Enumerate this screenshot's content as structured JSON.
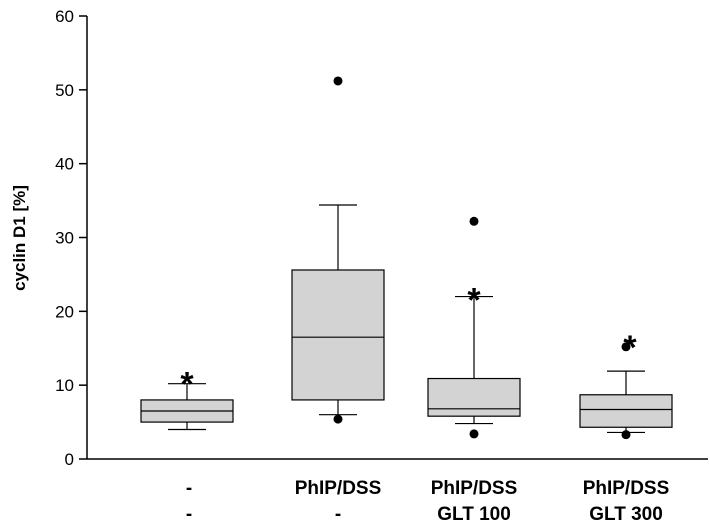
{
  "chart_data": {
    "type": "box",
    "ylabel": "cyclin D1   [%]",
    "ylim": [
      0,
      60
    ],
    "yticks": [
      0,
      10,
      20,
      30,
      40,
      50,
      60
    ],
    "categories": [
      {
        "line1": "-",
        "line2": "-"
      },
      {
        "line1": "PhIP/DSS",
        "line2": "-"
      },
      {
        "line1": "PhIP/DSS",
        "line2": "GLT 100"
      },
      {
        "line1": "PhIP/DSS",
        "line2": "GLT 300"
      }
    ],
    "boxes": [
      {
        "whisker_low": 4.0,
        "q1": 5.0,
        "median": 6.5,
        "q3": 8.0,
        "whisker_high": 10.2,
        "outliers": [],
        "significant": true
      },
      {
        "whisker_low": 6.0,
        "q1": 8.0,
        "median": 16.5,
        "q3": 25.6,
        "whisker_high": 34.4,
        "outliers": [
          51.2,
          5.4
        ],
        "significant": false
      },
      {
        "whisker_low": 4.8,
        "q1": 5.8,
        "median": 6.8,
        "q3": 10.9,
        "whisker_high": 22.0,
        "outliers": [
          32.2,
          3.4
        ],
        "significant": true
      },
      {
        "whisker_low": 3.6,
        "q1": 4.3,
        "median": 6.7,
        "q3": 8.7,
        "whisker_high": 11.9,
        "outliers": [
          15.2,
          3.3
        ],
        "significant": true
      }
    ],
    "significance_marker": "*",
    "box_fill": "#d3d3d3",
    "grid": false
  }
}
